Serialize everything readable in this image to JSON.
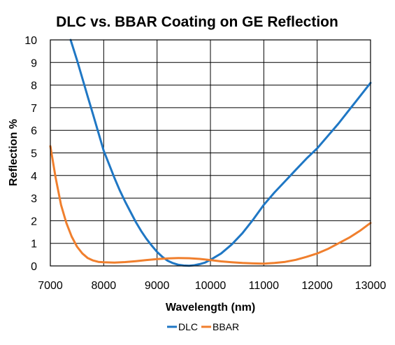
{
  "chart_data": {
    "type": "line",
    "title": "DLC vs. BBAR Coating on GE Reflection",
    "xlabel": "Wavelength (nm)",
    "ylabel": "Reflection %",
    "xlim": [
      7000,
      13000
    ],
    "ylim": [
      0,
      10
    ],
    "xticks": [
      7000,
      8000,
      9000,
      10000,
      11000,
      12000,
      13000
    ],
    "yticks": [
      0,
      1,
      2,
      3,
      4,
      5,
      6,
      7,
      8,
      9,
      10
    ],
    "grid": true,
    "legend_position": "bottom-center",
    "series": [
      {
        "name": "DLC",
        "color": "#1f77c4",
        "x": [
          7380,
          7500,
          7600,
          7700,
          7800,
          7900,
          8000,
          8100,
          8200,
          8300,
          8400,
          8500,
          8600,
          8700,
          8800,
          8900,
          9000,
          9100,
          9200,
          9300,
          9400,
          9500,
          9600,
          9700,
          9800,
          9900,
          10000,
          10200,
          10400,
          10600,
          10800,
          11000,
          11200,
          11400,
          11600,
          11800,
          12000,
          12200,
          12400,
          12600,
          12800,
          13000
        ],
        "y": [
          10,
          9.1,
          8.3,
          7.5,
          6.7,
          5.9,
          5.1,
          4.5,
          3.9,
          3.35,
          2.85,
          2.4,
          1.95,
          1.55,
          1.2,
          0.9,
          0.62,
          0.4,
          0.23,
          0.12,
          0.05,
          0.02,
          0.01,
          0.03,
          0.08,
          0.15,
          0.27,
          0.55,
          0.95,
          1.45,
          2.05,
          2.7,
          3.25,
          3.75,
          4.25,
          4.75,
          5.2,
          5.75,
          6.3,
          6.9,
          7.5,
          8.1
        ]
      },
      {
        "name": "BBAR",
        "color": "#f07f2d",
        "x": [
          7000,
          7100,
          7200,
          7300,
          7400,
          7500,
          7600,
          7700,
          7800,
          7900,
          8000,
          8200,
          8400,
          8600,
          8800,
          9000,
          9200,
          9400,
          9600,
          9800,
          10000,
          10200,
          10400,
          10600,
          10800,
          11000,
          11200,
          11400,
          11600,
          11800,
          12000,
          12200,
          12400,
          12600,
          12800,
          13000
        ],
        "y": [
          5.3,
          3.9,
          2.7,
          1.9,
          1.3,
          0.85,
          0.55,
          0.35,
          0.24,
          0.18,
          0.16,
          0.15,
          0.17,
          0.21,
          0.26,
          0.3,
          0.33,
          0.35,
          0.34,
          0.31,
          0.26,
          0.2,
          0.16,
          0.13,
          0.11,
          0.1,
          0.13,
          0.18,
          0.27,
          0.4,
          0.55,
          0.75,
          1.0,
          1.25,
          1.55,
          1.9
        ]
      }
    ]
  }
}
